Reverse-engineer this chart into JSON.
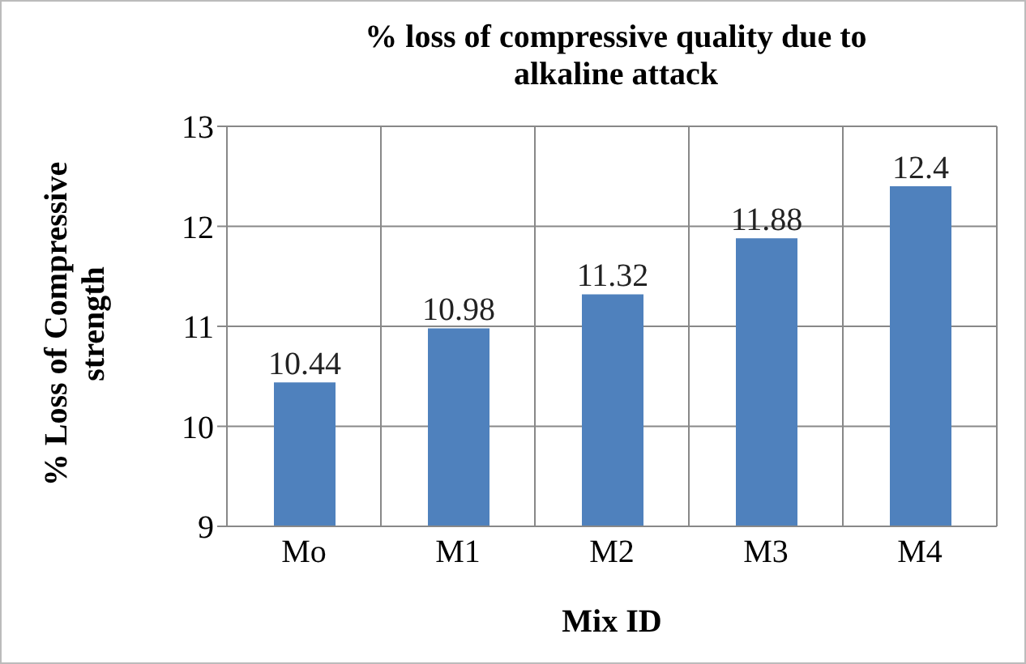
{
  "chart_data": {
    "type": "bar",
    "title": "% loss of compressive quality due to alkaline attack",
    "xlabel": "Mix ID",
    "ylabel": "% Loss of Compressive strength",
    "categories": [
      "Mo",
      "M1",
      "M2",
      "M3",
      "M4"
    ],
    "values": [
      10.44,
      10.98,
      11.32,
      11.88,
      12.4
    ],
    "color": "#4f81bd",
    "ylim": [
      9,
      13
    ],
    "yticks": [
      9,
      10,
      11,
      12,
      13
    ],
    "grid": true,
    "data_labels": true
  }
}
